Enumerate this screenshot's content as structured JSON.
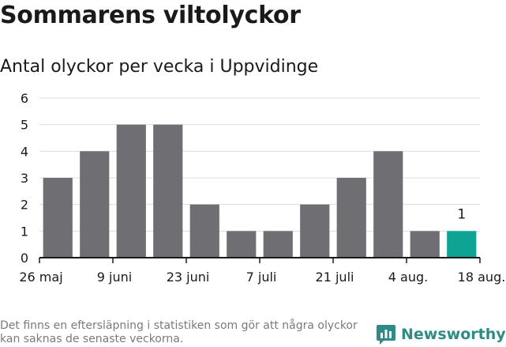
{
  "title": "Sommarens viltolyckor",
  "subtitle": "Antal olyckor per vecka i Uppvidinge",
  "footnote": "Det finns en eftersläpning i statistiken som gör att några olyckor kan saknas de senaste veckorna.",
  "brand": "Newsworthy",
  "colors": {
    "bar": "#6f6e73",
    "highlight": "#0ea393",
    "brand": "#2e8b86",
    "grid": "#dcdcdc",
    "axis": "#1a1a1a"
  },
  "chart_data": {
    "type": "bar",
    "title": "Sommarens viltolyckor",
    "subtitle": "Antal olyckor per vecka i Uppvidinge",
    "xlabel": "",
    "ylabel": "",
    "ylim": [
      0,
      6
    ],
    "yticks": [
      0,
      1,
      2,
      3,
      4,
      5,
      6
    ],
    "grid": true,
    "x_tick_labels": [
      "26 maj",
      "9 juni",
      "23 juni",
      "7 juli",
      "21 juli",
      "4 aug.",
      "18 aug."
    ],
    "values": [
      3,
      4,
      5,
      5,
      2,
      1,
      1,
      2,
      3,
      4,
      1,
      1
    ],
    "highlight_index": 11,
    "data_labels": [
      {
        "index": 11,
        "text": "1"
      }
    ]
  }
}
